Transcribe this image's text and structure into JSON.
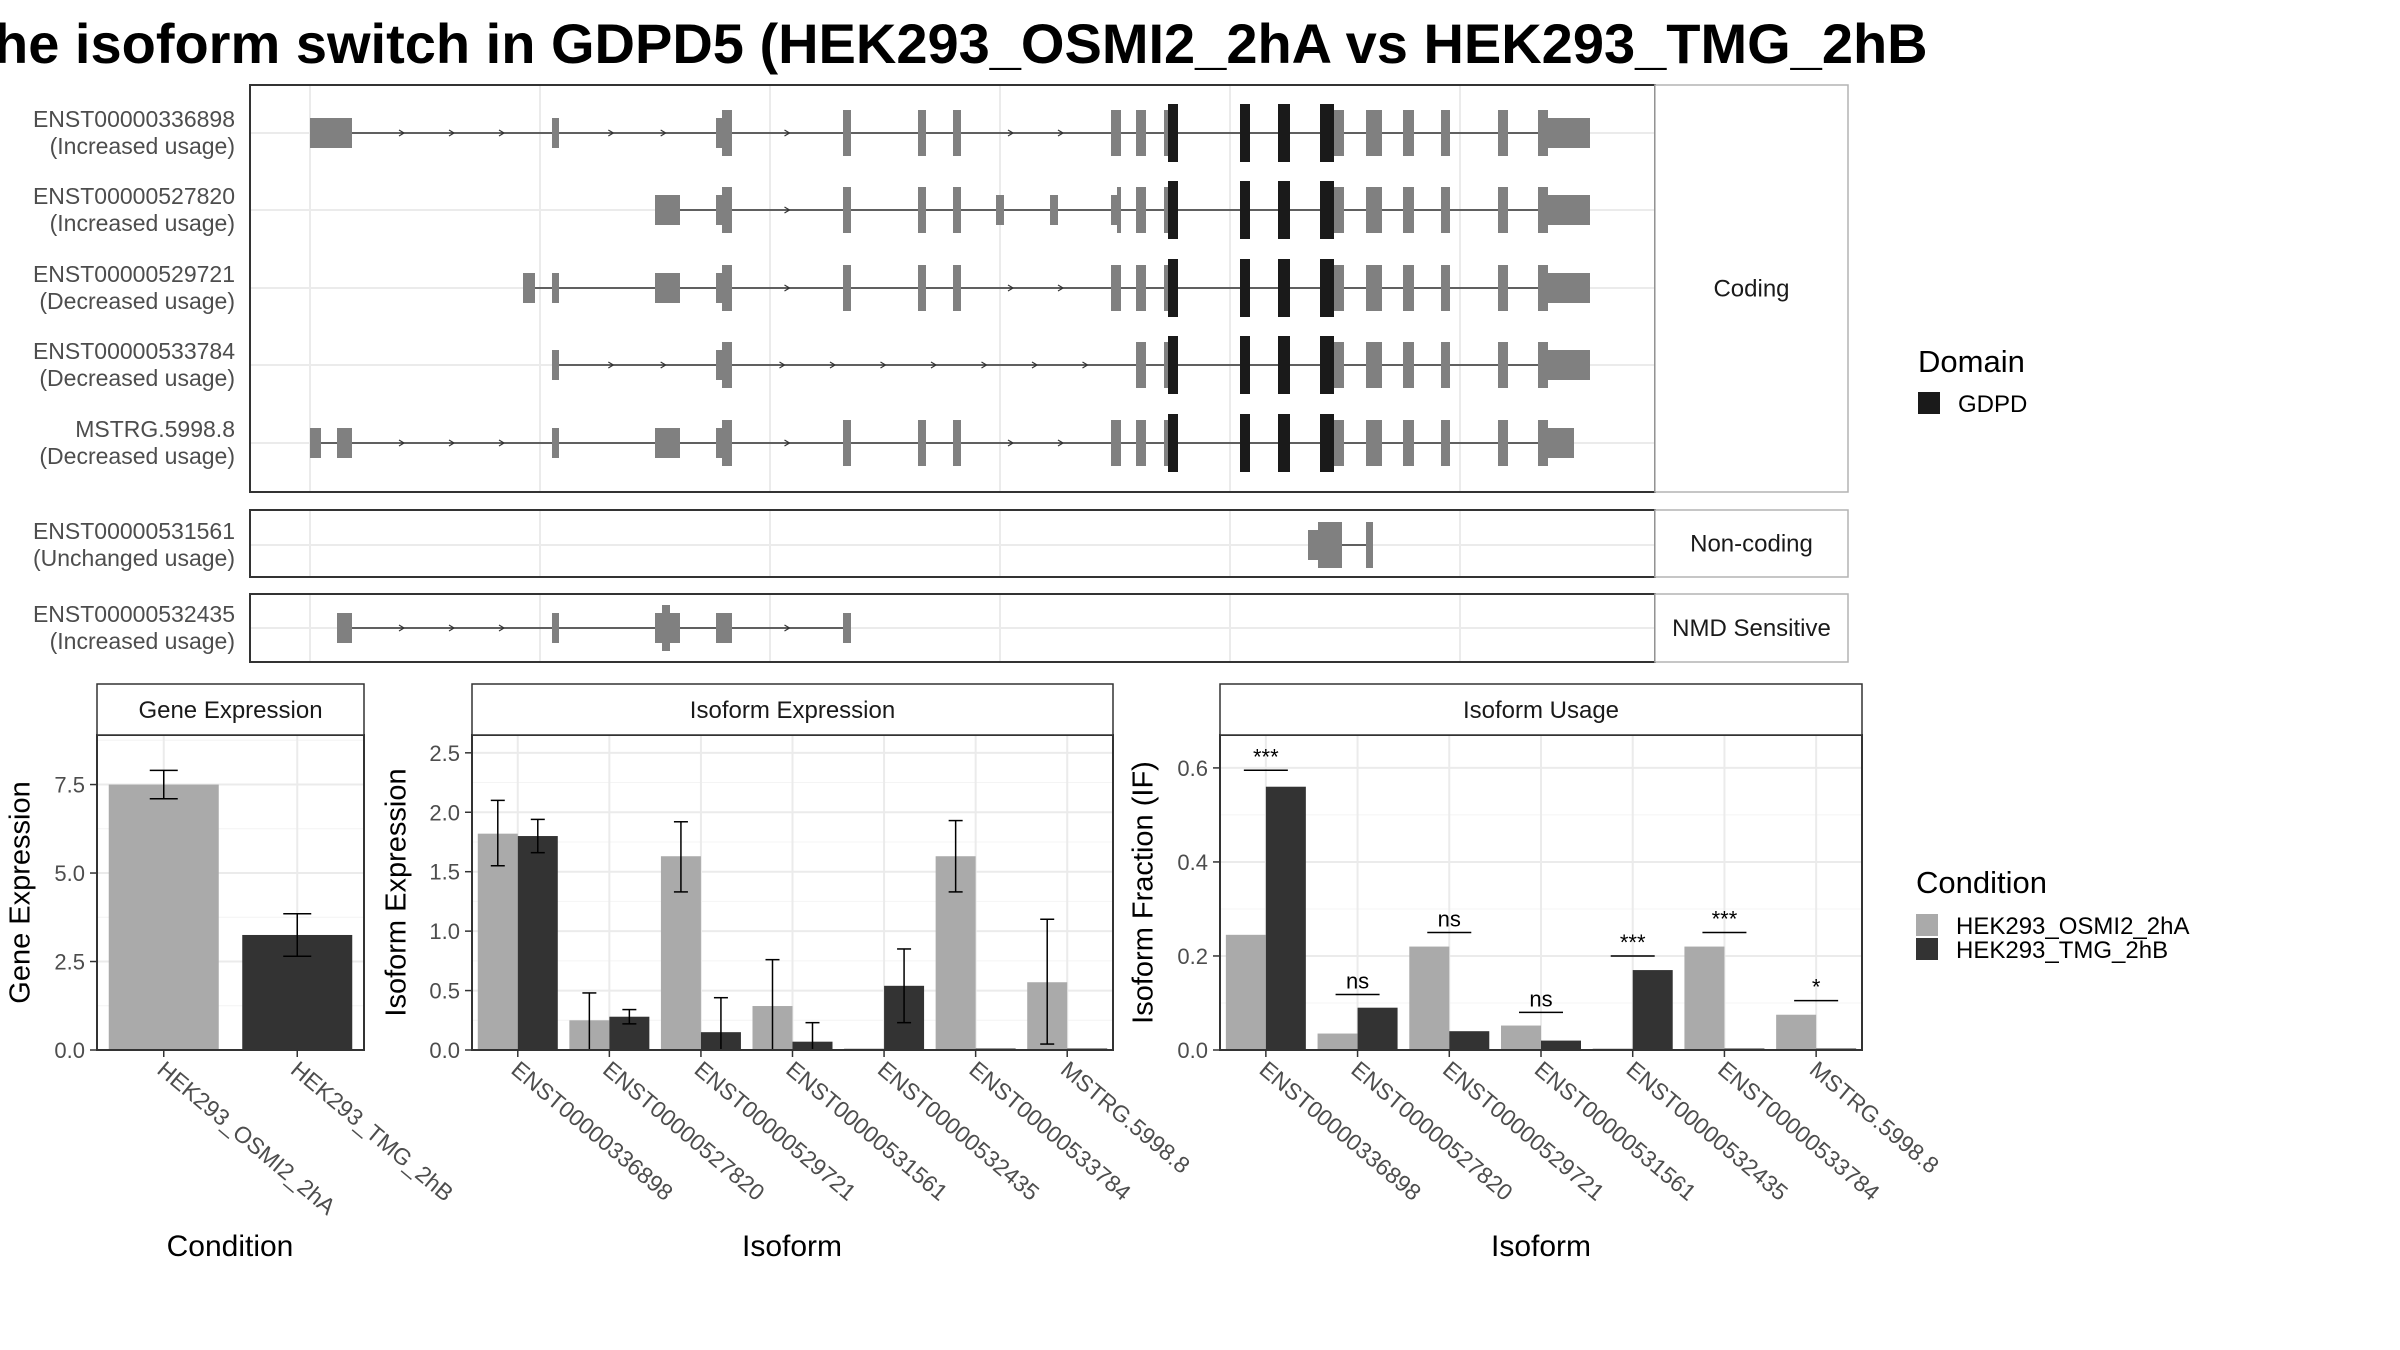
{
  "title": "he isoform switch in GDPD5 (HEK293_OSMI2_2hA vs HEK293_TMG_2hB",
  "colors": {
    "exon": "#808080",
    "domain": "#1a1a1a",
    "cond1": "#aaaaaa",
    "cond2": "#333333",
    "grid": "#ebebeb",
    "panel_border": "#333333",
    "strip_border": "#b3b3b3"
  },
  "transcript_panel": {
    "groups": [
      {
        "label": "Coding",
        "transcripts": [
          {
            "id": "ENST00000336898",
            "usage": "(Increased usage)"
          },
          {
            "id": "ENST00000527820",
            "usage": "(Increased usage)"
          },
          {
            "id": "ENST00000529721",
            "usage": "(Decreased usage)"
          },
          {
            "id": "ENST00000533784",
            "usage": "(Decreased usage)"
          },
          {
            "id": "MSTRG.5998.8",
            "usage": "(Decreased usage)"
          }
        ]
      },
      {
        "label": "Non-coding",
        "transcripts": [
          {
            "id": "ENST00000531561",
            "usage": "(Unchanged usage)"
          }
        ]
      },
      {
        "label": "NMD Sensitive",
        "transcripts": [
          {
            "id": "ENST00000532435",
            "usage": "(Increased usage)"
          }
        ]
      }
    ],
    "legend": {
      "title": "Domain",
      "items": [
        {
          "label": "GDPD",
          "color": "#1a1a1a"
        }
      ]
    }
  },
  "condition_legend": {
    "title": "Condition",
    "items": [
      {
        "label": "HEK293_OSMI2_2hA",
        "color": "#aaaaaa"
      },
      {
        "label": "HEK293_TMG_2hB",
        "color": "#333333"
      }
    ]
  },
  "chart_data": [
    {
      "type": "bar",
      "title": "Gene Expression",
      "xlabel": "Condition",
      "ylabel": "Gene Expression",
      "ylim": [
        0,
        8.9
      ],
      "yticks": [
        0.0,
        2.5,
        5.0,
        7.5
      ],
      "ytick_labels": [
        "0.0",
        "2.5",
        "5.0",
        "7.5"
      ],
      "categories": [
        "HEK293_OSMI2_2hA",
        "HEK293_TMG_2hB"
      ],
      "values": [
        7.5,
        3.25
      ],
      "error_low": [
        7.1,
        2.65
      ],
      "error_high": [
        7.9,
        3.85
      ]
    },
    {
      "type": "bar",
      "title": "Isoform Expression",
      "xlabel": "Isoform",
      "ylabel": "Isoform Expression",
      "ylim": [
        0,
        2.65
      ],
      "yticks": [
        0.0,
        0.5,
        1.0,
        1.5,
        2.0,
        2.5
      ],
      "ytick_labels": [
        "0.0",
        "0.5",
        "1.0",
        "1.5",
        "2.0",
        "2.5"
      ],
      "categories": [
        "ENST00000336898",
        "ENST00000527820",
        "ENST00000529721",
        "ENST00000531561",
        "ENST00000532435",
        "ENST00000533784",
        "MSTRG.5998.8"
      ],
      "series": [
        {
          "name": "HEK293_OSMI2_2hA",
          "values": [
            1.82,
            0.25,
            1.63,
            0.37,
            0.0,
            1.63,
            0.57
          ],
          "error_low": [
            1.55,
            0.0,
            1.33,
            0.0,
            0.0,
            1.33,
            0.05
          ],
          "error_high": [
            2.1,
            0.48,
            1.92,
            0.76,
            0.0,
            1.93,
            1.1
          ]
        },
        {
          "name": "HEK293_TMG_2hB",
          "values": [
            1.8,
            0.28,
            0.15,
            0.07,
            0.54,
            0.0,
            0.0
          ],
          "error_low": [
            1.66,
            0.22,
            0.0,
            0.0,
            0.23,
            0.0,
            0.0
          ],
          "error_high": [
            1.94,
            0.34,
            0.44,
            0.23,
            0.85,
            0.0,
            0.0
          ]
        }
      ]
    },
    {
      "type": "bar",
      "title": "Isoform Usage",
      "xlabel": "Isoform",
      "ylabel": "Isoform Fraction (IF)",
      "ylim": [
        0,
        0.67
      ],
      "yticks": [
        0.0,
        0.2,
        0.4,
        0.6
      ],
      "ytick_labels": [
        "0.0",
        "0.2",
        "0.4",
        "0.6"
      ],
      "categories": [
        "ENST00000336898",
        "ENST00000527820",
        "ENST00000529721",
        "ENST00000531561",
        "ENST00000532435",
        "ENST00000533784",
        "MSTRG.5998.8"
      ],
      "series": [
        {
          "name": "HEK293_OSMI2_2hA",
          "values": [
            0.245,
            0.035,
            0.22,
            0.052,
            0.0,
            0.22,
            0.075
          ]
        },
        {
          "name": "HEK293_TMG_2hB",
          "values": [
            0.56,
            0.09,
            0.04,
            0.02,
            0.17,
            0.0,
            0.0
          ]
        }
      ],
      "significance": [
        {
          "label": "***",
          "y": 0.595
        },
        {
          "label": "ns",
          "y": 0.118
        },
        {
          "label": "ns",
          "y": 0.25
        },
        {
          "label": "ns",
          "y": 0.08
        },
        {
          "label": "***",
          "y": 0.2
        },
        {
          "label": "***",
          "y": 0.25
        },
        {
          "label": "*",
          "y": 0.105
        }
      ]
    }
  ]
}
